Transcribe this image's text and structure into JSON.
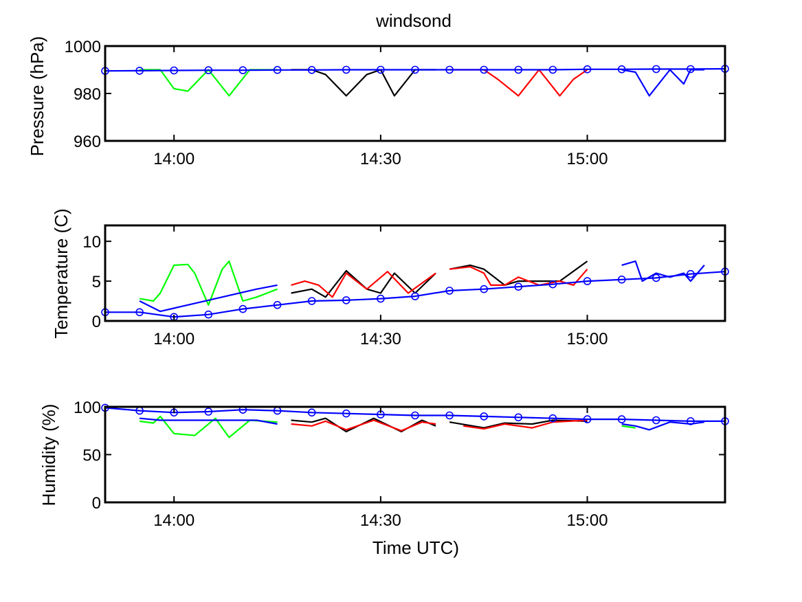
{
  "figure": {
    "title": "windsond",
    "xlabel": "Time UTC)",
    "colors": {
      "blue": "#0000ff",
      "green": "#00ff00",
      "black": "#000000",
      "red": "#ff0000"
    }
  },
  "chart_data": [
    {
      "type": "line",
      "ylabel": "Pressure (hPa)",
      "xlim": [
        "13:50",
        "15:20"
      ],
      "ylim": [
        960,
        1000
      ],
      "xticks": [
        "14:00",
        "14:30",
        "15:00"
      ],
      "yticks": [
        960,
        980,
        1000
      ],
      "grid": false,
      "series": [
        {
          "color": "green",
          "marker": "none",
          "segments": [
            {
              "x": [
                "13:55",
                "13:58",
                "14:00",
                "14:02",
                "14:05",
                "14:08",
                "14:11",
                "14:15"
              ],
              "y": [
                990,
                990,
                982,
                981,
                990,
                979,
                990,
                990
              ]
            }
          ]
        },
        {
          "color": "black",
          "marker": "none",
          "segments": [
            {
              "x": [
                "14:17",
                "14:20",
                "14:22",
                "14:25",
                "14:28",
                "14:30",
                "14:32",
                "14:35",
                "14:38"
              ],
              "y": [
                990,
                990,
                988,
                979,
                988,
                990,
                979,
                990,
                990
              ]
            }
          ]
        },
        {
          "color": "red",
          "marker": "none",
          "segments": [
            {
              "x": [
                "14:40",
                "14:45",
                "14:47",
                "14:50",
                "14:53",
                "14:56",
                "14:58",
                "15:00"
              ],
              "y": [
                990,
                990,
                986,
                979,
                990,
                979,
                986,
                990
              ]
            }
          ]
        },
        {
          "color": "blue",
          "marker": "none",
          "segments": [
            {
              "x": [
                "15:05",
                "15:07",
                "15:09",
                "15:12",
                "15:14",
                "15:15",
                "15:17"
              ],
              "y": [
                990,
                989,
                979,
                990,
                984,
                990,
                990
              ]
            }
          ]
        },
        {
          "color": "blue",
          "marker": "circle",
          "segments": [
            {
              "x": [
                "13:50",
                "13:55",
                "14:00",
                "14:05",
                "14:10",
                "14:15",
                "14:20",
                "14:25",
                "14:30",
                "14:35",
                "14:40",
                "14:45",
                "14:50",
                "14:55",
                "15:00",
                "15:05",
                "15:10",
                "15:15",
                "15:20"
              ],
              "y": [
                989.5,
                989.6,
                989.7,
                989.8,
                989.8,
                989.9,
                989.9,
                990,
                990,
                990,
                990,
                990,
                990,
                990,
                990.2,
                990.2,
                990.3,
                990.3,
                990.4
              ]
            }
          ]
        }
      ]
    },
    {
      "type": "line",
      "ylabel": "Temperature (C)",
      "xlim": [
        "13:50",
        "15:20"
      ],
      "ylim": [
        0,
        12
      ],
      "xticks": [
        "14:00",
        "14:30",
        "15:00"
      ],
      "yticks": [
        0,
        5,
        10
      ],
      "grid": false,
      "series": [
        {
          "color": "green",
          "marker": "none",
          "segments": [
            {
              "x": [
                "13:55",
                "13:57",
                "13:58",
                "14:00",
                "14:02",
                "14:03",
                "14:05",
                "14:07",
                "14:08",
                "14:10",
                "14:12",
                "14:15"
              ],
              "y": [
                2.8,
                2.5,
                3.5,
                7,
                7.1,
                6,
                2,
                6.5,
                7.5,
                2.5,
                3,
                4
              ]
            }
          ]
        },
        {
          "color": "black",
          "marker": "none",
          "segments": [
            {
              "x": [
                "14:17",
                "14:20",
                "14:22",
                "14:25",
                "14:28",
                "14:30",
                "14:32",
                "14:35",
                "14:38"
              ],
              "y": [
                3.5,
                4,
                3,
                6.3,
                4,
                3.5,
                6,
                3.5,
                6
              ]
            },
            {
              "x": [
                "14:40",
                "14:43",
                "14:45",
                "14:48",
                "14:50",
                "14:53",
                "14:56",
                "15:00"
              ],
              "y": [
                6.5,
                7,
                6.5,
                4.5,
                5,
                5,
                5,
                7.5
              ]
            }
          ]
        },
        {
          "color": "red",
          "marker": "none",
          "segments": [
            {
              "x": [
                "14:17",
                "14:19",
                "14:21",
                "14:23",
                "14:25",
                "14:28",
                "14:31",
                "14:34",
                "14:38"
              ],
              "y": [
                4.5,
                5,
                4.5,
                3,
                6,
                4,
                6.2,
                3.5,
                6
              ]
            },
            {
              "x": [
                "14:40",
                "14:43",
                "14:45",
                "14:46",
                "14:48",
                "14:50",
                "14:53",
                "14:56",
                "14:58",
                "15:00"
              ],
              "y": [
                6.5,
                6.8,
                6,
                4.5,
                4.5,
                5.5,
                4.5,
                5,
                4.5,
                6.5
              ]
            }
          ]
        },
        {
          "color": "blue",
          "marker": "none",
          "segments": [
            {
              "x": [
                "13:55",
                "13:58",
                "14:12",
                "14:15"
              ],
              "y": [
                2.5,
                1.2,
                4,
                4.5
              ]
            },
            {
              "x": [
                "15:05",
                "15:07",
                "15:08",
                "15:10",
                "15:12",
                "15:14",
                "15:15",
                "15:17"
              ],
              "y": [
                7,
                7.5,
                5,
                6,
                5.5,
                6,
                5,
                7
              ]
            }
          ]
        },
        {
          "color": "blue",
          "marker": "circle",
          "segments": [
            {
              "x": [
                "13:50",
                "13:55",
                "14:00",
                "14:05",
                "14:10",
                "14:15",
                "14:20",
                "14:25",
                "14:30",
                "14:35",
                "14:40",
                "14:45",
                "14:50",
                "14:55",
                "15:00",
                "15:05",
                "15:10",
                "15:15",
                "15:20"
              ],
              "y": [
                1.1,
                1.1,
                0.5,
                0.8,
                1.5,
                2,
                2.5,
                2.6,
                2.8,
                3.1,
                3.8,
                4,
                4.3,
                4.6,
                5,
                5.2,
                5.4,
                5.9,
                6.2
              ]
            }
          ]
        }
      ]
    },
    {
      "type": "line",
      "ylabel": "Humidity (%)",
      "xlim": [
        "13:50",
        "15:20"
      ],
      "ylim": [
        0,
        100
      ],
      "xticks": [
        "14:00",
        "14:30",
        "15:00"
      ],
      "yticks": [
        0,
        50,
        100
      ],
      "grid": false,
      "series": [
        {
          "color": "green",
          "marker": "none",
          "segments": [
            {
              "x": [
                "13:55",
                "13:57",
                "13:58",
                "14:00",
                "14:03",
                "14:06",
                "14:08",
                "14:11",
                "14:15"
              ],
              "y": [
                85,
                83,
                90,
                72,
                70,
                88,
                68,
                86,
                84
              ]
            },
            {
              "x": [
                "15:05",
                "15:07"
              ],
              "y": [
                80,
                78
              ]
            }
          ]
        },
        {
          "color": "black",
          "marker": "none",
          "segments": [
            {
              "x": [
                "14:17",
                "14:20",
                "14:22",
                "14:25",
                "14:29",
                "14:33",
                "14:36",
                "14:38"
              ],
              "y": [
                86,
                84,
                88,
                74,
                88,
                74,
                86,
                80
              ]
            },
            {
              "x": [
                "14:40",
                "14:45",
                "14:48",
                "14:52",
                "14:55",
                "15:00"
              ],
              "y": [
                84,
                78,
                83,
                82,
                86,
                85
              ]
            }
          ]
        },
        {
          "color": "red",
          "marker": "none",
          "segments": [
            {
              "x": [
                "14:17",
                "14:20",
                "14:22",
                "14:25",
                "14:29",
                "14:33",
                "14:36",
                "14:38"
              ],
              "y": [
                82,
                80,
                85,
                76,
                86,
                75,
                84,
                82
              ]
            },
            {
              "x": [
                "14:42",
                "14:45",
                "14:48",
                "14:52",
                "14:55",
                "15:00"
              ],
              "y": [
                80,
                77,
                82,
                78,
                84,
                86
              ]
            }
          ]
        },
        {
          "color": "blue",
          "marker": "none",
          "segments": [
            {
              "x": [
                "13:55",
                "13:58",
                "14:12",
                "14:15"
              ],
              "y": [
                88,
                86,
                86,
                82
              ]
            },
            {
              "x": [
                "15:05",
                "15:07",
                "15:09",
                "15:12",
                "15:15",
                "15:17"
              ],
              "y": [
                82,
                80,
                76,
                84,
                82,
                84
              ]
            }
          ]
        },
        {
          "color": "blue",
          "marker": "circle",
          "segments": [
            {
              "x": [
                "13:50",
                "13:55",
                "14:00",
                "14:05",
                "14:10",
                "14:15",
                "14:20",
                "14:25",
                "14:30",
                "14:35",
                "14:40",
                "14:45",
                "14:50",
                "14:55",
                "15:00",
                "15:05",
                "15:10",
                "15:15",
                "15:20"
              ],
              "y": [
                99,
                96,
                94,
                95,
                97,
                96,
                94,
                93,
                92,
                91,
                91,
                90,
                89,
                88,
                87,
                87,
                86,
                85,
                85
              ]
            }
          ]
        }
      ]
    }
  ]
}
